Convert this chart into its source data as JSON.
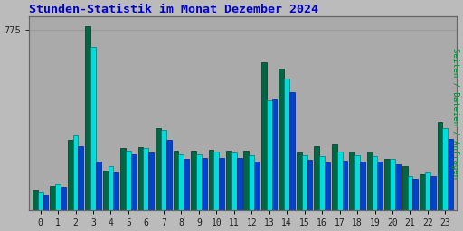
{
  "title": "Stunden-Statistik im Monat Dezember 2024",
  "title_color": "#0000cc",
  "ylabel": "Seiten / Dateien / Anfragen",
  "ylabel_color": "#008833",
  "background_color": "#bbbbbb",
  "plot_bg_color": "#aaaaaa",
  "hours": [
    0,
    1,
    2,
    3,
    4,
    5,
    6,
    7,
    8,
    9,
    10,
    11,
    12,
    13,
    14,
    15,
    16,
    17,
    18,
    19,
    20,
    21,
    22,
    23
  ],
  "seiten": [
    85,
    105,
    300,
    790,
    170,
    265,
    270,
    350,
    255,
    255,
    260,
    255,
    255,
    635,
    605,
    245,
    275,
    280,
    250,
    250,
    220,
    190,
    155,
    380
  ],
  "dateien": [
    75,
    110,
    320,
    700,
    190,
    255,
    265,
    345,
    240,
    240,
    250,
    245,
    235,
    470,
    565,
    235,
    230,
    250,
    235,
    230,
    220,
    145,
    160,
    350
  ],
  "anfragen": [
    65,
    100,
    275,
    210,
    160,
    240,
    248,
    300,
    220,
    225,
    225,
    225,
    210,
    475,
    505,
    215,
    205,
    212,
    210,
    208,
    195,
    135,
    145,
    305
  ],
  "color_seiten": "#006644",
  "color_dateien": "#00dddd",
  "color_anfragen": "#0044cc",
  "bar_width": 0.3,
  "ylim": [
    0,
    830
  ],
  "yticks": [
    775
  ],
  "figsize": [
    5.12,
    2.56
  ],
  "dpi": 100
}
